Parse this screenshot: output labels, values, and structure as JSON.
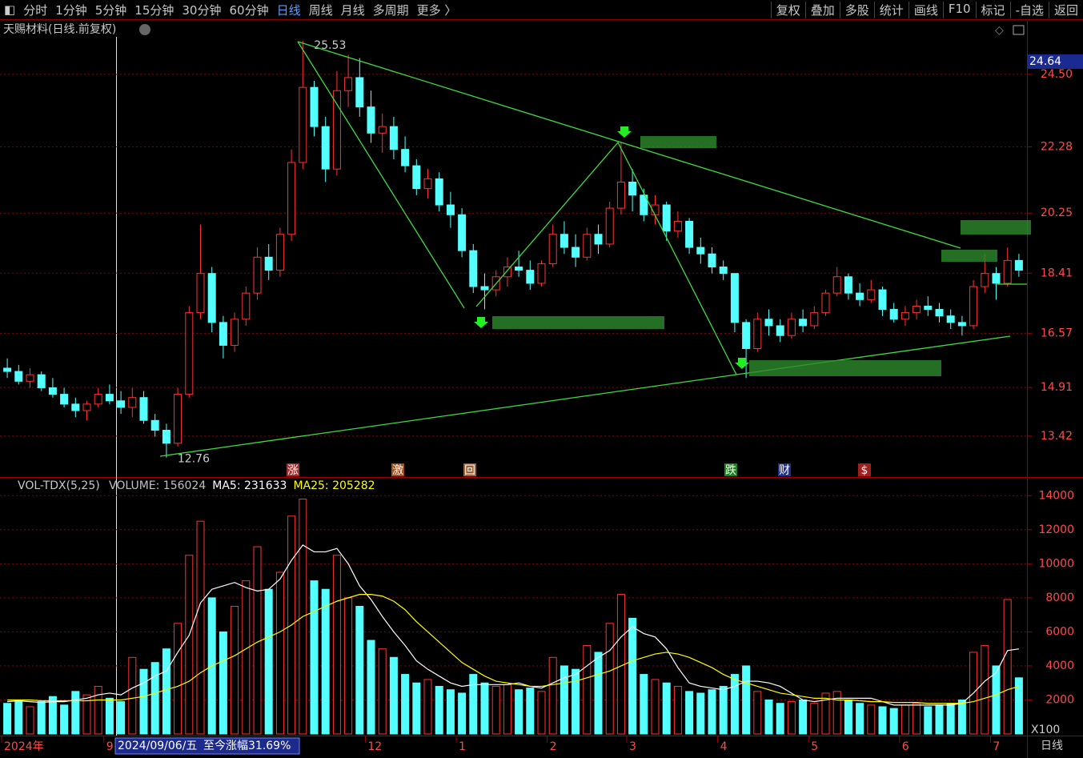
{
  "toolbar": {
    "left": [
      "分时",
      "1分钟",
      "5分钟",
      "15分钟",
      "30分钟",
      "60分钟",
      "日线",
      "周线",
      "月线",
      "多周期",
      "更多 〉"
    ],
    "active": "日线",
    "right": [
      "复权",
      "叠加",
      "多股",
      "统计",
      "画线",
      "F10",
      "标记",
      "-自选",
      "返回"
    ]
  },
  "chart_data": [
    {
      "type": "candlestick",
      "title": "天赐材料(日线.前复权)",
      "up_color": "#ff3232",
      "down_color": "#54ffff",
      "categories": [
        "2024年",
        null,
        null,
        null,
        null,
        null,
        null,
        null,
        null,
        "9",
        null,
        null,
        null,
        null,
        null,
        null,
        null,
        null,
        null,
        null,
        null,
        null,
        null,
        null,
        null,
        null,
        null,
        null,
        null,
        null,
        null,
        null,
        "12",
        null,
        null,
        null,
        null,
        null,
        null,
        null,
        "1",
        null,
        null,
        null,
        null,
        null,
        null,
        null,
        "2",
        null,
        null,
        null,
        null,
        null,
        null,
        "3",
        null,
        null,
        null,
        null,
        null,
        null,
        null,
        "4",
        null,
        null,
        null,
        null,
        null,
        null,
        null,
        "5",
        null,
        null,
        null,
        null,
        null,
        null,
        null,
        "6",
        null,
        null,
        null,
        null,
        null,
        null,
        null,
        "7",
        null,
        null
      ],
      "candles": [
        [
          15.5,
          15.8,
          15.2,
          15.4
        ],
        [
          15.4,
          15.6,
          15.0,
          15.1
        ],
        [
          15.1,
          15.5,
          14.9,
          15.3
        ],
        [
          15.3,
          15.4,
          14.8,
          14.9
        ],
        [
          14.9,
          15.2,
          14.6,
          14.7
        ],
        [
          14.7,
          14.9,
          14.3,
          14.4
        ],
        [
          14.4,
          14.6,
          14.0,
          14.2
        ],
        [
          14.2,
          14.5,
          13.9,
          14.4
        ],
        [
          14.4,
          14.9,
          14.3,
          14.7
        ],
        [
          14.7,
          15.0,
          14.4,
          14.5
        ],
        [
          14.5,
          14.8,
          14.1,
          14.3
        ],
        [
          14.3,
          14.9,
          14.0,
          14.6
        ],
        [
          14.6,
          14.8,
          13.8,
          13.9
        ],
        [
          13.9,
          14.1,
          13.4,
          13.6
        ],
        [
          13.6,
          13.8,
          12.76,
          13.2
        ],
        [
          13.2,
          14.9,
          13.1,
          14.7
        ],
        [
          14.7,
          17.4,
          14.6,
          17.2
        ],
        [
          17.2,
          19.9,
          17.0,
          18.4
        ],
        [
          18.4,
          18.6,
          16.6,
          16.9
        ],
        [
          16.9,
          17.1,
          15.8,
          16.2
        ],
        [
          16.2,
          17.2,
          16.0,
          17.0
        ],
        [
          17.0,
          18.0,
          16.8,
          17.8
        ],
        [
          17.8,
          19.2,
          17.6,
          18.9
        ],
        [
          18.9,
          19.3,
          18.2,
          18.5
        ],
        [
          18.5,
          19.8,
          18.3,
          19.6
        ],
        [
          19.6,
          22.2,
          19.4,
          21.8
        ],
        [
          21.8,
          25.53,
          21.6,
          24.1
        ],
        [
          24.1,
          24.3,
          22.6,
          22.9
        ],
        [
          22.9,
          23.2,
          21.2,
          21.6
        ],
        [
          21.6,
          24.6,
          21.4,
          24.0
        ],
        [
          24.0,
          25.1,
          23.5,
          24.4
        ],
        [
          24.4,
          25.0,
          23.2,
          23.5
        ],
        [
          23.5,
          24.0,
          22.4,
          22.7
        ],
        [
          22.7,
          23.3,
          22.1,
          22.9
        ],
        [
          22.9,
          23.2,
          21.9,
          22.2
        ],
        [
          22.2,
          22.6,
          21.5,
          21.7
        ],
        [
          21.7,
          21.9,
          20.8,
          21.0
        ],
        [
          21.0,
          21.6,
          20.7,
          21.3
        ],
        [
          21.3,
          21.5,
          20.3,
          20.5
        ],
        [
          20.5,
          20.9,
          19.8,
          20.2
        ],
        [
          20.2,
          20.4,
          18.9,
          19.1
        ],
        [
          19.1,
          19.3,
          17.8,
          18.0
        ],
        [
          18.0,
          18.4,
          17.3,
          17.9
        ],
        [
          17.9,
          18.5,
          17.7,
          18.3
        ],
        [
          18.3,
          18.9,
          18.0,
          18.6
        ],
        [
          18.6,
          19.1,
          18.3,
          18.5
        ],
        [
          18.5,
          18.8,
          17.9,
          18.1
        ],
        [
          18.1,
          18.8,
          18.0,
          18.7
        ],
        [
          18.7,
          19.9,
          18.6,
          19.6
        ],
        [
          19.6,
          20.0,
          19.0,
          19.2
        ],
        [
          19.2,
          19.6,
          18.6,
          18.9
        ],
        [
          18.9,
          19.8,
          18.8,
          19.6
        ],
        [
          19.6,
          19.9,
          19.0,
          19.3
        ],
        [
          19.3,
          20.6,
          19.2,
          20.4
        ],
        [
          20.4,
          22.4,
          20.2,
          21.2
        ],
        [
          21.2,
          21.6,
          20.3,
          20.8
        ],
        [
          20.8,
          21.0,
          20.0,
          20.2
        ],
        [
          20.2,
          20.8,
          19.9,
          20.5
        ],
        [
          20.5,
          20.6,
          19.4,
          19.7
        ],
        [
          19.7,
          20.3,
          19.5,
          20.0
        ],
        [
          20.0,
          20.1,
          19.0,
          19.2
        ],
        [
          19.2,
          19.5,
          18.7,
          19.0
        ],
        [
          19.0,
          19.2,
          18.4,
          18.6
        ],
        [
          18.6,
          18.8,
          18.2,
          18.4
        ],
        [
          18.4,
          18.4,
          16.6,
          16.9
        ],
        [
          16.9,
          17.0,
          15.2,
          16.1
        ],
        [
          16.1,
          17.2,
          16.0,
          17.0
        ],
        [
          17.0,
          17.3,
          16.5,
          16.8
        ],
        [
          16.8,
          17.0,
          16.3,
          16.5
        ],
        [
          16.5,
          17.2,
          16.4,
          17.0
        ],
        [
          17.0,
          17.3,
          16.6,
          16.8
        ],
        [
          16.8,
          17.4,
          16.7,
          17.2
        ],
        [
          17.2,
          17.9,
          17.1,
          17.8
        ],
        [
          17.8,
          18.6,
          17.7,
          18.3
        ],
        [
          18.3,
          18.4,
          17.6,
          17.8
        ],
        [
          17.8,
          18.1,
          17.4,
          17.6
        ],
        [
          17.6,
          18.2,
          17.5,
          17.9
        ],
        [
          17.9,
          18.0,
          17.1,
          17.3
        ],
        [
          17.3,
          17.5,
          16.9,
          17.0
        ],
        [
          17.0,
          17.4,
          16.8,
          17.2
        ],
        [
          17.2,
          17.6,
          17.0,
          17.4
        ],
        [
          17.4,
          17.7,
          17.1,
          17.3
        ],
        [
          17.3,
          17.5,
          16.9,
          17.1
        ],
        [
          17.1,
          17.3,
          16.7,
          16.9
        ],
        [
          16.9,
          17.1,
          16.5,
          16.8
        ],
        [
          16.8,
          18.2,
          16.7,
          18.0
        ],
        [
          18.0,
          19.0,
          17.8,
          18.4
        ],
        [
          18.4,
          18.6,
          17.6,
          18.1
        ],
        [
          18.1,
          19.2,
          18.0,
          18.8
        ],
        [
          18.8,
          19.0,
          18.3,
          18.5
        ]
      ],
      "ylim": [
        12.19,
        26.09
      ],
      "yticks": [
        {
          "value": 24.5,
          "label": "24.50"
        },
        22.28,
        20.25,
        18.41,
        16.57,
        14.91,
        13.42
      ],
      "grid": true,
      "high_label": 25.53,
      "low_label": 12.76,
      "price_tag": 24.64,
      "events": [
        "涨",
        "激",
        "回",
        "跌",
        "财",
        "$"
      ]
    },
    {
      "type": "volume",
      "header": "VOL-TDX(5,25)",
      "unit_label": "X100",
      "period_label": "日线",
      "series": [
        {
          "name": "VOLUME: 156024",
          "color": "#c0c0c0",
          "values": [
            1800,
            2000,
            1600,
            1900,
            2200,
            1700,
            2500,
            2300,
            2800,
            2100,
            1900,
            4500,
            3800,
            4200,
            5000,
            6500,
            10500,
            12500,
            8000,
            6000,
            7500,
            9000,
            11000,
            8500,
            9500,
            12800,
            13800,
            9000,
            8500,
            10500,
            8000,
            7500,
            5500,
            5000,
            4500,
            3500,
            3000,
            3200,
            2800,
            2600,
            2400,
            3500,
            3000,
            2800,
            2900,
            2600,
            2700,
            2500,
            4500,
            4000,
            3800,
            5200,
            4800,
            6500,
            8200,
            6800,
            3500,
            3200,
            3000,
            2800,
            2500,
            2400,
            2600,
            2800,
            3500,
            4000,
            2500,
            2000,
            1800,
            1900,
            2000,
            1800,
            2400,
            2500,
            2000,
            1800,
            1700,
            1600,
            1500,
            1700,
            1800,
            1600,
            1700,
            1800,
            2000,
            4800,
            5200,
            4000,
            7900,
            3300
          ]
        },
        {
          "name": "MA5: 231633",
          "color": "#ffffff",
          "values": [
            1900,
            1950,
            1900,
            1850,
            1900,
            1900,
            2000,
            2100,
            2300,
            2400,
            2300,
            2700,
            3000,
            3400,
            3700,
            4800,
            5800,
            7700,
            8500,
            8700,
            8900,
            8600,
            8400,
            8500,
            9100,
            10200,
            11100,
            10700,
            10700,
            10900,
            10000,
            8700,
            7900,
            6900,
            6000,
            5200,
            4300,
            3800,
            3400,
            3000,
            2800,
            2900,
            2900,
            2900,
            2900,
            3000,
            2800,
            2700,
            3000,
            3300,
            3500,
            4000,
            4500,
            4900,
            5700,
            6300,
            5900,
            5700,
            5000,
            3900,
            3000,
            2800,
            2700,
            2600,
            2800,
            3100,
            3100,
            3000,
            2800,
            2400,
            2000,
            1900,
            2000,
            2100,
            2100,
            2100,
            2100,
            1900,
            1700,
            1700,
            1700,
            1700,
            1700,
            1700,
            1800,
            2400,
            3100,
            3600,
            4900,
            5000
          ]
        },
        {
          "name": "MA25: 205282",
          "color": "#ffff00",
          "values": [
            2000,
            2000,
            2000,
            1950,
            1950,
            1950,
            1950,
            1950,
            2000,
            2000,
            2000,
            2100,
            2200,
            2400,
            2600,
            2800,
            3100,
            3600,
            4000,
            4300,
            4600,
            5000,
            5400,
            5700,
            6000,
            6400,
            6900,
            7200,
            7500,
            7800,
            8000,
            8200,
            8200,
            8100,
            7800,
            7300,
            6600,
            6000,
            5400,
            4800,
            4200,
            3800,
            3400,
            3100,
            3000,
            2900,
            2800,
            2800,
            2900,
            3000,
            3100,
            3300,
            3500,
            3700,
            4000,
            4300,
            4500,
            4700,
            4800,
            4700,
            4500,
            4200,
            3900,
            3500,
            3200,
            3000,
            2800,
            2600,
            2400,
            2300,
            2200,
            2100,
            2100,
            2000,
            2000,
            1950,
            1900,
            1900,
            1850,
            1850,
            1850,
            1800,
            1800,
            1800,
            1800,
            1900,
            2100,
            2300,
            2600,
            2800
          ]
        }
      ],
      "ylim": [
        0,
        15000
      ],
      "yticks": [
        2000,
        4000,
        6000,
        8000,
        10000,
        12000,
        14000
      ],
      "grid": true
    }
  ],
  "status": {
    "date": "2024/09/06/五",
    "change": "至今涨幅31.69%"
  }
}
